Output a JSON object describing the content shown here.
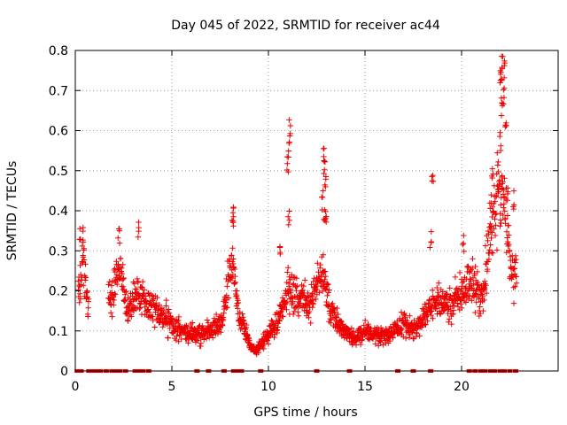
{
  "chart_data": {
    "type": "scatter",
    "title": "Day 045 of 2022, SRMTID for receiver ac44",
    "xlabel": "GPS time / hours",
    "ylabel": "SRMTID / TECUs",
    "xlim": [
      0,
      25
    ],
    "ylim": [
      0,
      0.8
    ],
    "x_ticks": [
      0,
      5,
      10,
      15,
      20
    ],
    "x_tick_labels": [
      "0",
      "5",
      "10",
      "15",
      "20"
    ],
    "y_ticks": [
      0,
      0.1,
      0.2,
      0.3,
      0.4,
      0.5,
      0.6,
      0.7,
      0.8
    ],
    "y_tick_labels": [
      "0",
      "0.1",
      "0.2",
      "0.3",
      "0.4",
      "0.5",
      "0.6",
      "0.7",
      "0.8"
    ],
    "grid": true,
    "marker": "+",
    "series": [
      {
        "name": "SRMTID",
        "color": "#ee0000",
        "profile": [
          [
            0.2,
            0.2
          ],
          [
            0.4,
            0.28
          ],
          [
            0.6,
            0.18
          ],
          [
            1.5,
            0.15
          ],
          [
            2.0,
            0.2
          ],
          [
            2.3,
            0.28
          ],
          [
            2.7,
            0.14
          ],
          [
            3.2,
            0.2
          ],
          [
            3.6,
            0.17
          ],
          [
            4.2,
            0.15
          ],
          [
            5.0,
            0.12
          ],
          [
            5.6,
            0.1
          ],
          [
            6.2,
            0.09
          ],
          [
            7.0,
            0.1
          ],
          [
            7.6,
            0.12
          ],
          [
            8.1,
            0.28
          ],
          [
            8.5,
            0.13
          ],
          [
            9.0,
            0.07
          ],
          [
            9.4,
            0.05
          ],
          [
            9.8,
            0.08
          ],
          [
            10.5,
            0.12
          ],
          [
            11.0,
            0.2
          ],
          [
            11.6,
            0.18
          ],
          [
            12.2,
            0.17
          ],
          [
            12.8,
            0.25
          ],
          [
            13.2,
            0.15
          ],
          [
            13.8,
            0.1
          ],
          [
            14.5,
            0.08
          ],
          [
            15.0,
            0.1
          ],
          [
            15.6,
            0.09
          ],
          [
            16.4,
            0.09
          ],
          [
            17.0,
            0.12
          ],
          [
            17.6,
            0.1
          ],
          [
            18.2,
            0.15
          ],
          [
            18.8,
            0.18
          ],
          [
            19.4,
            0.16
          ],
          [
            20.0,
            0.2
          ],
          [
            20.5,
            0.23
          ],
          [
            21.0,
            0.17
          ],
          [
            21.4,
            0.3
          ],
          [
            21.7,
            0.38
          ],
          [
            22.0,
            0.45
          ],
          [
            22.3,
            0.4
          ],
          [
            22.6,
            0.25
          ],
          [
            22.8,
            0.24
          ]
        ],
        "peaks": [
          [
            0.25,
            0.37
          ],
          [
            0.4,
            0.36
          ],
          [
            2.25,
            0.38
          ],
          [
            3.25,
            0.38
          ],
          [
            8.15,
            0.42
          ],
          [
            8.2,
            0.41
          ],
          [
            11.1,
            0.633
          ],
          [
            11.05,
            0.58
          ],
          [
            11.0,
            0.535
          ],
          [
            11.05,
            0.41
          ],
          [
            10.6,
            0.335
          ],
          [
            12.85,
            0.56
          ],
          [
            12.9,
            0.54
          ],
          [
            12.95,
            0.5
          ],
          [
            12.8,
            0.45
          ],
          [
            12.9,
            0.41
          ],
          [
            13.0,
            0.4
          ],
          [
            18.5,
            0.49
          ],
          [
            18.4,
            0.35
          ],
          [
            20.1,
            0.34
          ],
          [
            22.1,
            0.8
          ],
          [
            22.2,
            0.78
          ],
          [
            22.0,
            0.75
          ],
          [
            22.05,
            0.73
          ],
          [
            22.2,
            0.71
          ],
          [
            22.1,
            0.68
          ],
          [
            22.3,
            0.63
          ],
          [
            22.0,
            0.6
          ],
          [
            21.6,
            0.52
          ],
          [
            21.9,
            0.5
          ],
          [
            22.4,
            0.46
          ],
          [
            21.5,
            0.44
          ],
          [
            22.7,
            0.45
          ]
        ],
        "zero_x": [
          0.1,
          0.3,
          0.7,
          0.9,
          1.1,
          1.3,
          1.6,
          1.9,
          2.1,
          2.3,
          2.6,
          3.1,
          3.3,
          3.5,
          3.8,
          6.3,
          6.9,
          7.7,
          8.2,
          8.4,
          8.6,
          9.6,
          12.5,
          14.2,
          16.7,
          17.5,
          18.4,
          20.4,
          20.7,
          21.0,
          21.2,
          21.5,
          21.7,
          22.0,
          22.2,
          22.5,
          22.8
        ]
      }
    ]
  }
}
